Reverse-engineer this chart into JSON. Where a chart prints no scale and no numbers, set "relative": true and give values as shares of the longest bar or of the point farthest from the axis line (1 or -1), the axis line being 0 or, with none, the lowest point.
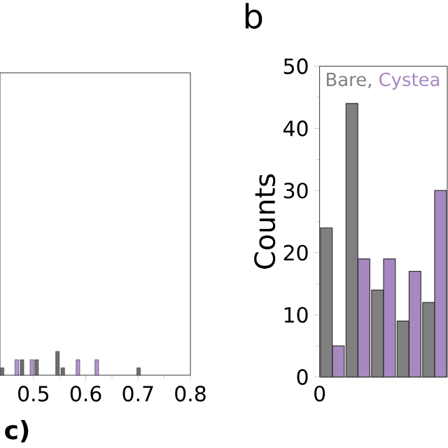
{
  "chart_data": [
    {
      "type": "bar",
      "relative": true,
      "xlabel": "c)",
      "xlim": [
        0.436,
        0.8
      ],
      "xticks": [
        0.5,
        0.6,
        0.7,
        0.8
      ],
      "series": [
        {
          "color": "#6e6e6e",
          "x": [
            0.44,
            0.478,
            0.506,
            0.546,
            0.556,
            0.701
          ],
          "values": [
            0.31,
            0.65,
            0.65,
            1,
            0.31,
            0.31
          ]
        },
        {
          "color": "#b592d2",
          "x": [
            0.468,
            0.497,
            0.585,
            0.621
          ],
          "values": [
            0.65,
            0.65,
            0.65,
            0.65
          ]
        }
      ]
    },
    {
      "type": "bar",
      "title": "b",
      "ylabel": "Counts",
      "legend": "top left",
      "categories": [
        null,
        null,
        null,
        null,
        null
      ],
      "annotations": [
        "0"
      ],
      "ylim": [
        0,
        50
      ],
      "yticks": [
        0,
        10,
        20,
        30,
        40,
        50
      ],
      "series": [
        {
          "name": "Bare,",
          "color": "#808080",
          "values": [
            24,
            44,
            14,
            9,
            12
          ]
        },
        {
          "name": "Cystea",
          "color": "#a888c0",
          "values": [
            5,
            19,
            19,
            17,
            30
          ]
        }
      ]
    }
  ]
}
